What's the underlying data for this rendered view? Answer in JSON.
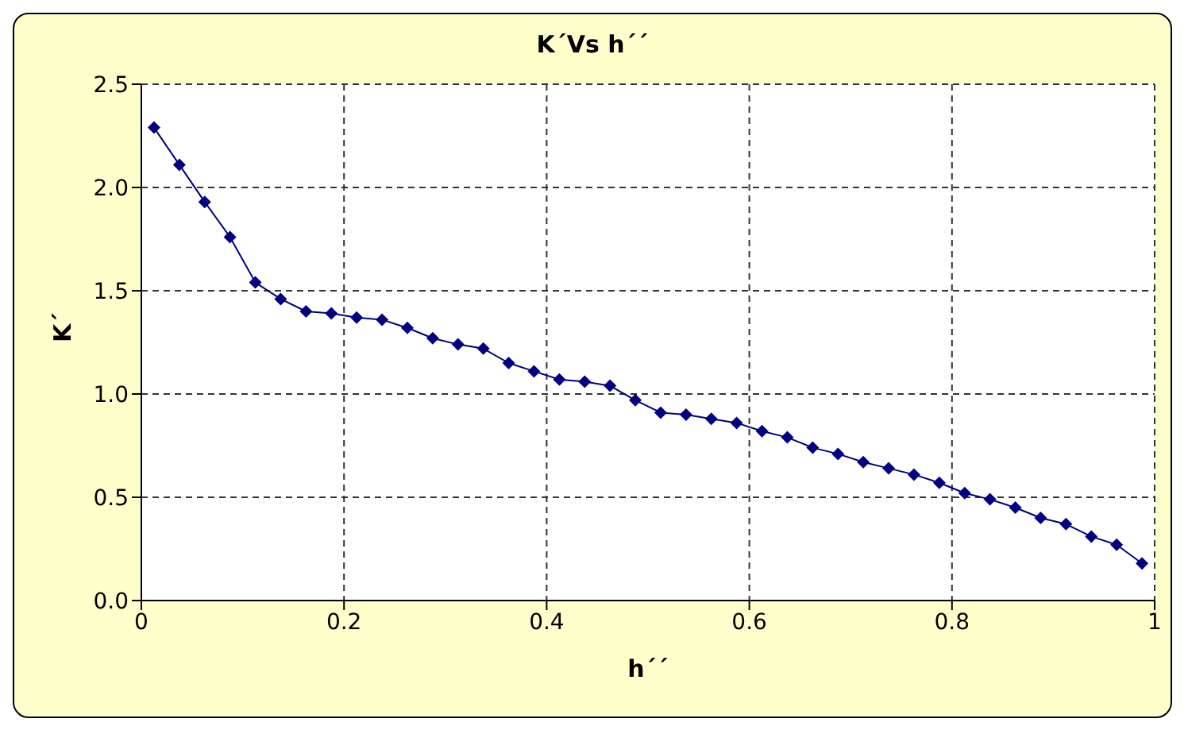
{
  "chart_data": {
    "type": "line",
    "title": "K´Vs h´´",
    "xlabel": "h´´",
    "ylabel": "K´",
    "x": [
      0.0125,
      0.0375,
      0.0625,
      0.0875,
      0.1125,
      0.1375,
      0.1625,
      0.1875,
      0.2125,
      0.2375,
      0.2625,
      0.2875,
      0.3125,
      0.3375,
      0.3625,
      0.3875,
      0.4125,
      0.4375,
      0.4625,
      0.4875,
      0.5125,
      0.5375,
      0.5625,
      0.5875,
      0.6125,
      0.6375,
      0.6625,
      0.6875,
      0.7125,
      0.7375,
      0.7625,
      0.7875,
      0.8125,
      0.8375,
      0.8625,
      0.8875,
      0.9125,
      0.9375,
      0.9625,
      0.9875
    ],
    "series": [
      {
        "color": "#000080",
        "values": [
          2.29,
          2.11,
          1.93,
          1.76,
          1.54,
          1.46,
          1.4,
          1.39,
          1.37,
          1.36,
          1.32,
          1.27,
          1.24,
          1.22,
          1.15,
          1.11,
          1.07,
          1.06,
          1.04,
          0.97,
          0.91,
          0.9,
          0.88,
          0.86,
          0.82,
          0.79,
          0.74,
          0.71,
          0.67,
          0.64,
          0.61,
          0.57,
          0.52,
          0.49,
          0.45,
          0.4,
          0.37,
          0.31,
          0.27,
          0.18
        ]
      }
    ],
    "xlim": [
      0,
      1
    ],
    "xticks": [
      0,
      0.2,
      0.4,
      0.6,
      0.8,
      1
    ],
    "ylim": [
      0,
      2.5
    ],
    "yticks": [
      {
        "value": 0,
        "label": "0.0"
      },
      {
        "value": 0.5,
        "label": "0.5"
      },
      {
        "value": 1,
        "label": "1.0"
      },
      {
        "value": 1.5,
        "label": "1.5"
      },
      {
        "value": 2,
        "label": "2.0"
      },
      {
        "value": 2.5,
        "label": "2.5"
      }
    ],
    "grid": true,
    "marker": "diamond",
    "line_style": "solid"
  }
}
